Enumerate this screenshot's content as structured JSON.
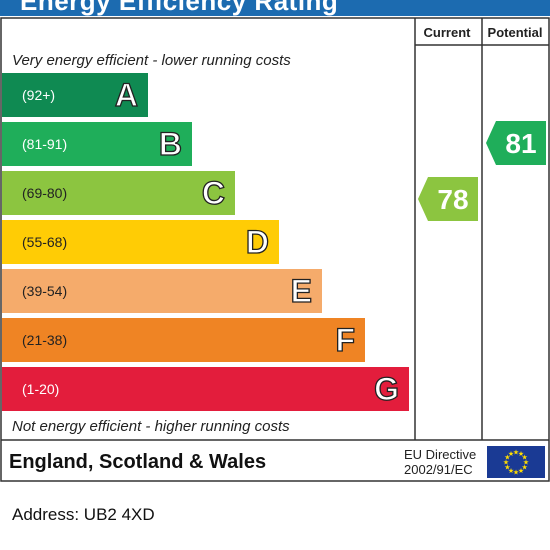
{
  "banner": {
    "title": "Energy Efficiency Rating"
  },
  "header": {
    "current_label": "Current",
    "potential_label": "Potential"
  },
  "top_caption": "Very energy efficient - lower running costs",
  "bottom_caption": "Not energy efficient - higher running costs",
  "footer": {
    "region": "England, Scotland & Wales",
    "directive_line1": "EU Directive",
    "directive_line2": "2002/91/EC"
  },
  "address": "Address: UB2 4XD",
  "chart_data": {
    "type": "bar",
    "title": "Energy Efficiency Rating",
    "categories": [
      "A",
      "B",
      "C",
      "D",
      "E",
      "F",
      "G"
    ],
    "ranges": [
      "(92+)",
      "(81-91)",
      "(69-80)",
      "(55-68)",
      "(39-54)",
      "(21-38)",
      "(1-20)"
    ],
    "colors": [
      "#0f8a52",
      "#1fae5a",
      "#8cc540",
      "#ffcc05",
      "#f5ab6b",
      "#ef8424",
      "#e31d3c"
    ],
    "current": {
      "value": 78,
      "band": "C",
      "color": "#8cc540"
    },
    "potential": {
      "value": 81,
      "band": "B",
      "color": "#1fae5a"
    }
  }
}
